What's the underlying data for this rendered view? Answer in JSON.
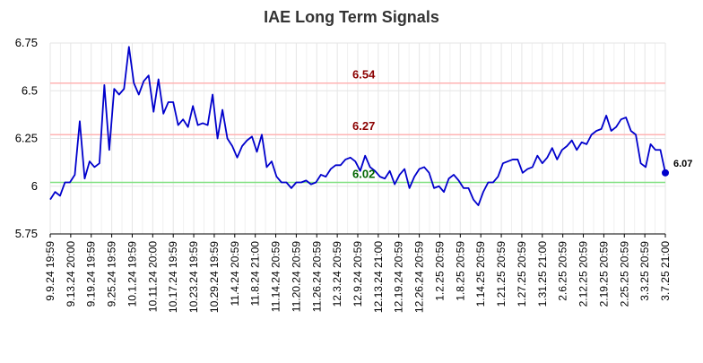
{
  "chart_data": {
    "type": "line",
    "title": "IAE Long Term Signals",
    "xlabel": "",
    "ylabel": "",
    "ylim": [
      5.75,
      6.75
    ],
    "y_ticks": [
      "5.75",
      "6",
      "6.25",
      "6.5",
      "6.75"
    ],
    "y_tick_values": [
      5.75,
      6.0,
      6.25,
      6.5,
      6.75
    ],
    "x_tick_labels": [
      "9.9.24 19:59",
      "9.13.24 20:00",
      "9.19.24 19:59",
      "9.25.24 19:59",
      "10.1.24 19:59",
      "10.11.24 20:00",
      "10.17.24 19:59",
      "10.23.24 19:59",
      "10.29.24 19:59",
      "11.4.24 20:59",
      "11.8.24 21:00",
      "11.14.24 20:59",
      "11.20.24 20:59",
      "11.26.24 20:59",
      "12.3.24 20:59",
      "12.9.24 20:59",
      "12.13.24 21:00",
      "12.19.24 20:59",
      "12.26.24 20:59",
      "1.2.25 20:59",
      "1.8.25 20:59",
      "1.14.25 20:59",
      "1.21.25 20:59",
      "1.27.25 20:59",
      "1.31.25 21:00",
      "2.6.25 20:59",
      "2.12.25 20:59",
      "2.19.25 20:59",
      "2.25.25 20:59",
      "3.3.25 20:59",
      "3.7.25 21:00"
    ],
    "grid": true,
    "colors": {
      "line": "#0000cc",
      "resistance": "#ffb3b3",
      "support": "#80e080",
      "resistance_label": "#8b0000",
      "support_label": "#006400",
      "last_label": "#000000",
      "grid": "#e5e5e5",
      "axis": "#000000"
    },
    "horizontal_lines": [
      {
        "value": 6.54,
        "label": "6.54",
        "kind": "resistance"
      },
      {
        "value": 6.27,
        "label": "6.27",
        "kind": "resistance"
      },
      {
        "value": 6.02,
        "label": "6.02",
        "kind": "support"
      }
    ],
    "last_value_label": "6.07",
    "series": [
      {
        "values": [
          5.93,
          5.97,
          5.95,
          6.02,
          6.02,
          6.06,
          6.34,
          6.04,
          6.13,
          6.1,
          6.12,
          6.53,
          6.19,
          6.51,
          6.48,
          6.51,
          6.73,
          6.54,
          6.48,
          6.55,
          6.58,
          6.39,
          6.56,
          6.38,
          6.44,
          6.44,
          6.32,
          6.35,
          6.31,
          6.42,
          6.32,
          6.33,
          6.32,
          6.48,
          6.25,
          6.4,
          6.25,
          6.21,
          6.15,
          6.21,
          6.24,
          6.26,
          6.18,
          6.27,
          6.1,
          6.13,
          6.05,
          6.02,
          6.02,
          5.99,
          6.02,
          6.02,
          6.03,
          6.01,
          6.02,
          6.06,
          6.05,
          6.09,
          6.11,
          6.11,
          6.14,
          6.15,
          6.13,
          6.08,
          6.16,
          6.1,
          6.08,
          6.05,
          6.04,
          6.08,
          6.01,
          6.06,
          6.09,
          5.99,
          6.05,
          6.09,
          6.1,
          6.07,
          5.99,
          6.0,
          5.97,
          6.04,
          6.06,
          6.03,
          5.99,
          5.99,
          5.93,
          5.9,
          5.97,
          6.02,
          6.02,
          6.05,
          6.12,
          6.13,
          6.14,
          6.14,
          6.07,
          6.09,
          6.1,
          6.16,
          6.12,
          6.15,
          6.2,
          6.14,
          6.19,
          6.21,
          6.24,
          6.19,
          6.23,
          6.22,
          6.27,
          6.29,
          6.3,
          6.37,
          6.29,
          6.31,
          6.35,
          6.36,
          6.29,
          6.27,
          6.12,
          6.1,
          6.22,
          6.19,
          6.19,
          6.07
        ]
      }
    ]
  }
}
